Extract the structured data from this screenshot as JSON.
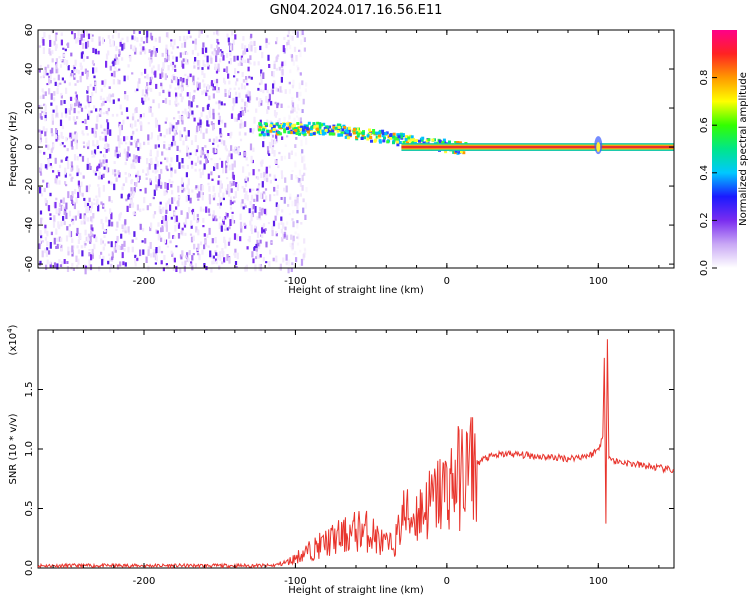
{
  "title": "GN04.2024.017.16.56.E11",
  "chart_data": [
    {
      "type": "heatmap",
      "xlabel": "Height of straight line (km)",
      "ylabel": "Frequency (Hz)",
      "xlim": [
        -270,
        150
      ],
      "ylim": [
        -62,
        60
      ],
      "xticks": [
        -200,
        -100,
        0,
        100
      ],
      "yticks": [
        -60,
        -40,
        -20,
        0,
        20,
        40,
        60
      ],
      "colorbar": {
        "label": "Normalized spectral amplitude",
        "range": [
          0,
          1
        ],
        "ticks": [
          0.0,
          0.2,
          0.4,
          0.6,
          0.8
        ],
        "colormap": [
          "#ffffff",
          "#c9a8f5",
          "#7a2df0",
          "#1a1aff",
          "#00c8ff",
          "#00e68a",
          "#33ff00",
          "#ffff00",
          "#ff9900",
          "#ff2222",
          "#ff0088"
        ]
      },
      "features": {
        "noise_region_x": [
          -270,
          -100
        ],
        "signal_band_y": [
          -2,
          2
        ],
        "signal_band_x": [
          -100,
          150
        ],
        "spot_x": 100
      }
    },
    {
      "type": "line",
      "xlabel": "Height of straight line (km)",
      "ylabel": "SNR (10 * v/v)",
      "yscale_label": "(x10",
      "yscale_exp": "4",
      "yscale_close": ")",
      "xlim": [
        -270,
        150
      ],
      "ylim": [
        0,
        2.0
      ],
      "xticks": [
        -200,
        -100,
        0,
        100
      ],
      "yticks": [
        0.0,
        0.5,
        1.0,
        1.5
      ],
      "color": "#e8342c",
      "series": [
        {
          "x": [
            -270,
            -240,
            -200,
            -150,
            -115,
            -105,
            -95,
            -85,
            -75,
            -65,
            -58,
            -50,
            -44,
            -38,
            -33,
            -29,
            -25,
            -20,
            -15,
            -10,
            -5,
            0,
            5,
            10,
            15,
            20,
            25,
            30,
            40,
            50,
            60,
            70,
            80,
            90,
            95,
            100,
            103,
            104,
            105,
            106,
            107,
            108,
            110,
            120,
            130,
            140,
            150
          ],
          "y": [
            0.02,
            0.02,
            0.02,
            0.02,
            0.02,
            0.05,
            0.12,
            0.18,
            0.24,
            0.28,
            0.32,
            0.3,
            0.22,
            0.18,
            0.25,
            0.45,
            0.42,
            0.45,
            0.5,
            0.55,
            0.62,
            0.68,
            0.73,
            0.78,
            0.85,
            0.88,
            0.92,
            0.94,
            0.96,
            0.95,
            0.94,
            0.93,
            0.92,
            0.94,
            0.95,
            1.0,
            1.1,
            1.75,
            0.4,
            1.95,
            0.95,
            0.92,
            0.9,
            0.88,
            0.86,
            0.84,
            0.82
          ]
        }
      ]
    }
  ]
}
